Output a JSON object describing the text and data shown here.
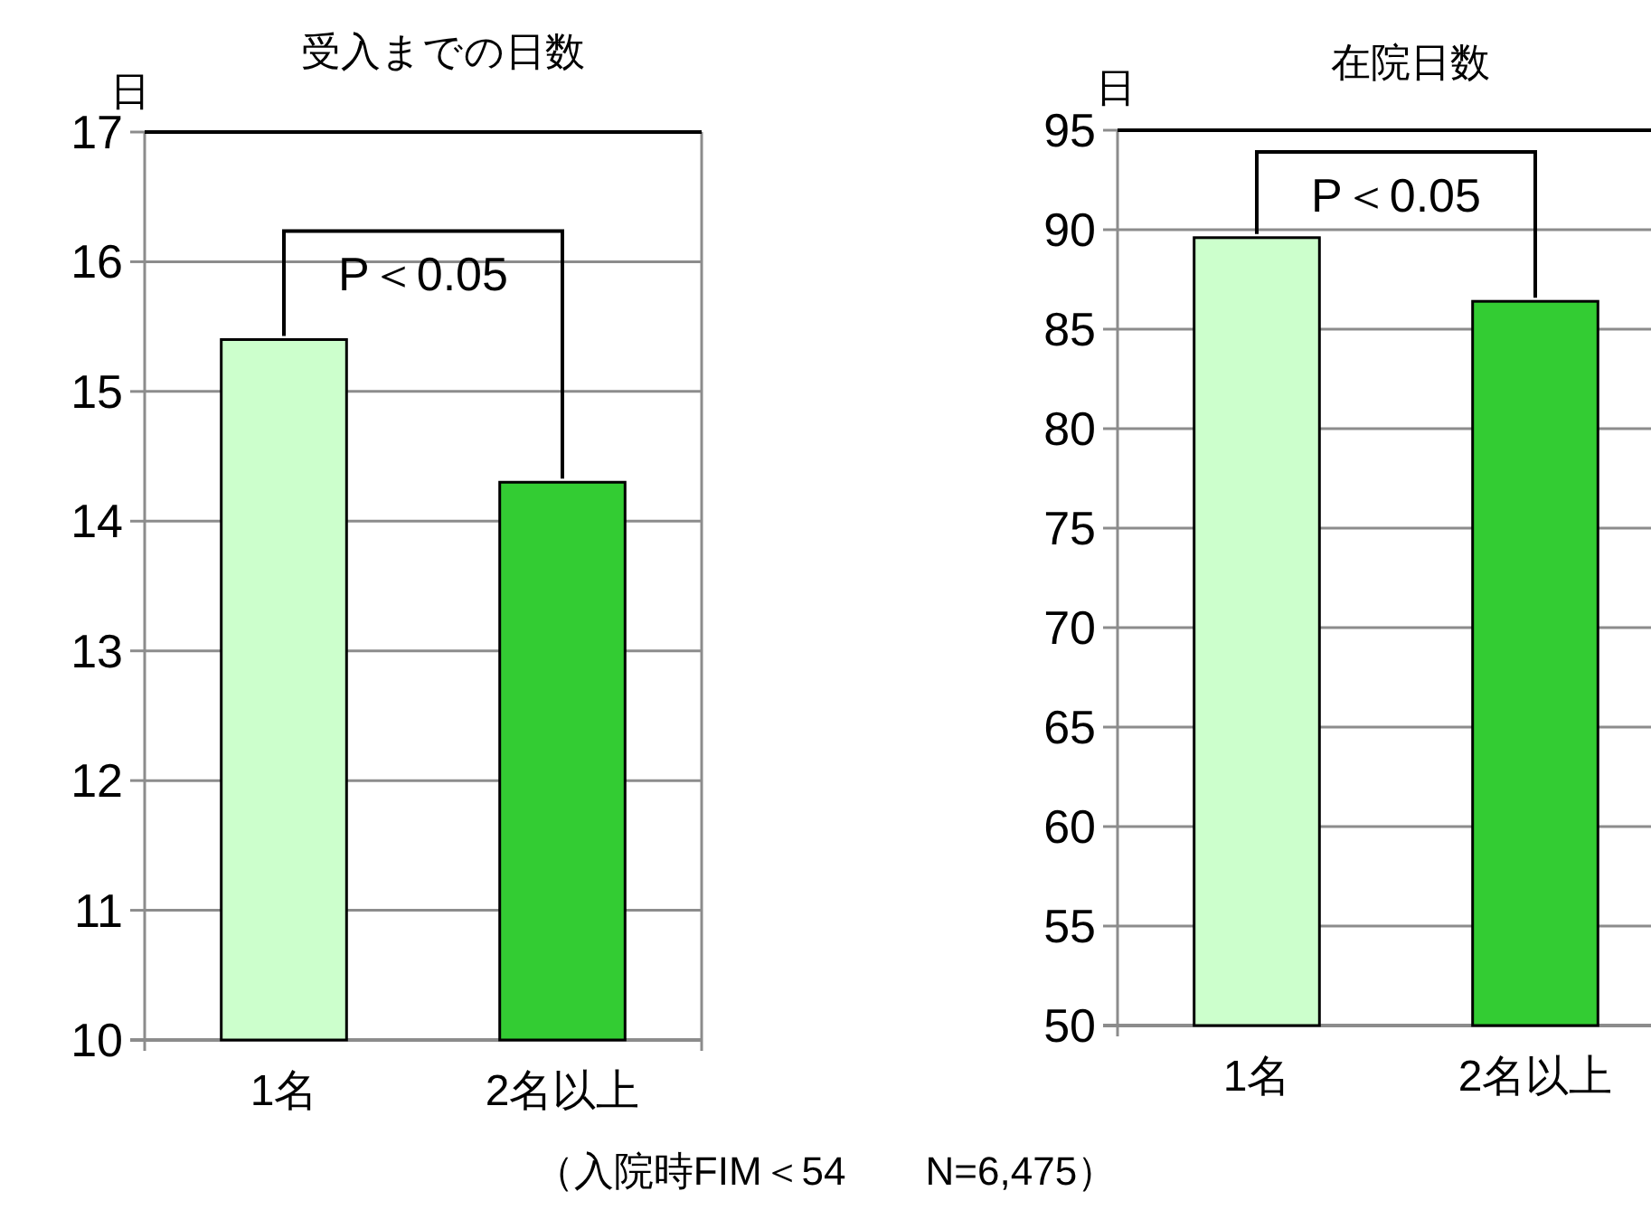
{
  "chart_data": [
    {
      "type": "bar",
      "title": "受入までの日数",
      "ylabel": "日",
      "categories": [
        "1名",
        "2名以上"
      ],
      "values": [
        15.4,
        14.3
      ],
      "colors": [
        "#ccffcc",
        "#33cc33"
      ],
      "ylim": [
        10,
        17
      ],
      "yticks": [
        10,
        11,
        12,
        13,
        14,
        15,
        16,
        17
      ],
      "grid": "y",
      "annotations": [
        "P＜0.05"
      ]
    },
    {
      "type": "bar",
      "title": "在院日数",
      "ylabel": "日",
      "categories": [
        "1名",
        "2名以上"
      ],
      "values": [
        89.6,
        86.4
      ],
      "colors": [
        "#ccffcc",
        "#33cc33"
      ],
      "ylim": [
        50,
        95
      ],
      "yticks": [
        50,
        55,
        60,
        65,
        70,
        75,
        80,
        85,
        90,
        95
      ],
      "grid": "y",
      "annotations": [
        "P＜0.05",
        "（入院時FIM＜54　　N=6,475）"
      ]
    }
  ]
}
